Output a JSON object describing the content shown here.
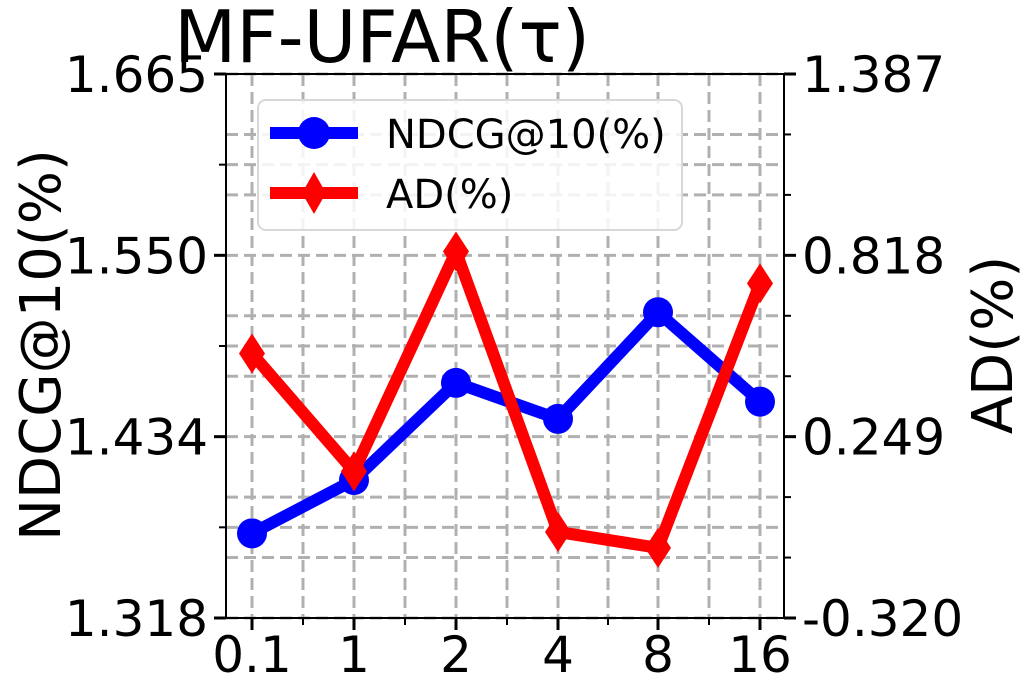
{
  "chart_data": {
    "type": "line",
    "title": "MF-UFAR(τ)",
    "xlabel": "",
    "ylabel_left": "NDCG@10(%)",
    "ylabel_right": "AD(%)",
    "categories": [
      "0.1",
      "1",
      "2",
      "4",
      "8",
      "16"
    ],
    "left_axis": {
      "ylim": [
        1.318,
        1.665
      ],
      "ticks": [
        "1.318",
        "1.434",
        "1.550",
        "1.665"
      ]
    },
    "right_axis": {
      "ylim": [
        -0.32,
        1.387
      ],
      "ticks": [
        "-0.320",
        "0.249",
        "0.818",
        "1.387"
      ]
    },
    "series": [
      {
        "name": "NDCG@10(%)",
        "axis": "left",
        "color": "#0000ff",
        "marker": "circle",
        "values": [
          1.372,
          1.406,
          1.468,
          1.445,
          1.513,
          1.456
        ]
      },
      {
        "name": "AD(%)",
        "axis": "right",
        "color": "#ff0000",
        "marker": "diamond",
        "values": [
          0.51,
          0.14,
          0.83,
          -0.05,
          -0.1,
          0.73
        ]
      }
    ],
    "grid": true,
    "legend_position": "upper-left"
  }
}
